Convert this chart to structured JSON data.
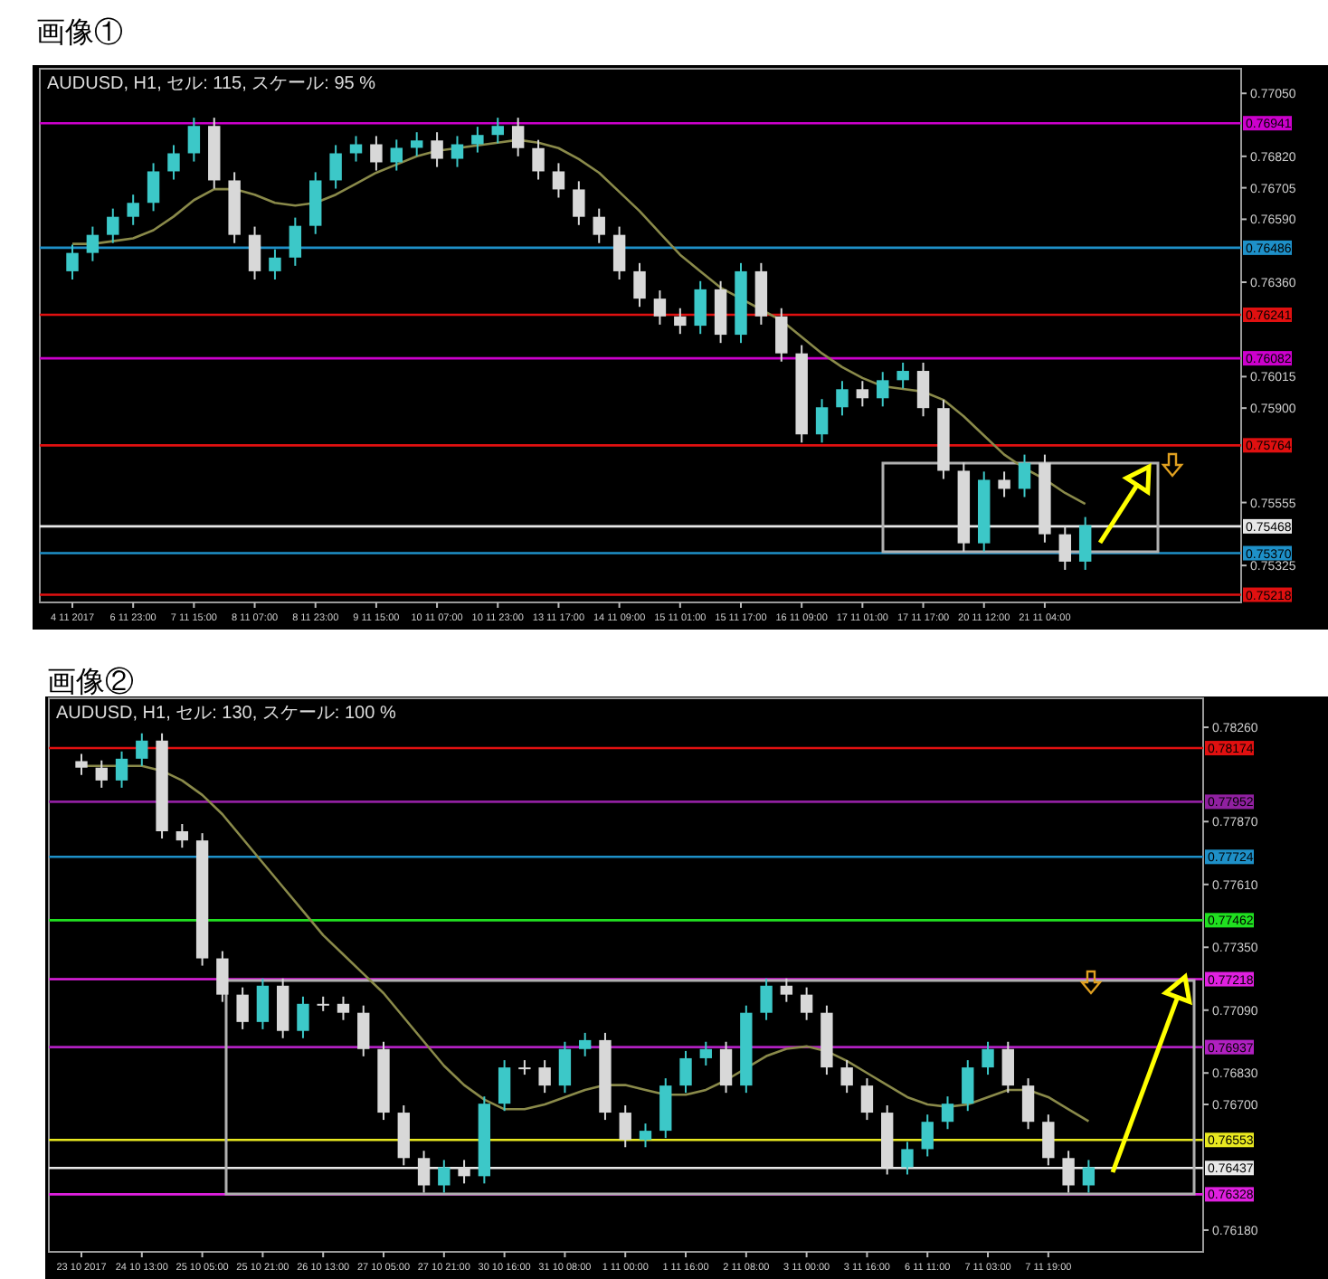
{
  "chart_data": [
    {
      "type": "candlestick",
      "title": "画像①",
      "subtitle": "AUDUSD, H1, セル: 115, スケール: 95 %",
      "categories": [
        "4 11 2017",
        null,
        null,
        "6 11 23:00",
        null,
        null,
        "7 11 15:00",
        null,
        null,
        "8 11 07:00",
        null,
        null,
        "8 11 23:00",
        null,
        null,
        "9 11 15:00",
        null,
        null,
        "10 11 07:00",
        null,
        null,
        "10 11 23:00",
        null,
        null,
        "13 11 17:00",
        null,
        null,
        "14 11 09:00",
        null,
        null,
        "15 11 01:00",
        null,
        null,
        "15 11 17:00",
        null,
        null,
        "16 11 09:00",
        null,
        null,
        "17 11 01:00",
        null,
        null,
        "17 11 17:00",
        null,
        null,
        "20 11 12:00",
        null,
        null,
        "21 11 04:00",
        null,
        null
      ],
      "ohlc": [
        [
          0.764,
          0.76497,
          0.7637,
          0.76467
        ],
        [
          0.76467,
          0.76563,
          0.76437,
          0.76533
        ],
        [
          0.76533,
          0.76629,
          0.76503,
          0.76599
        ],
        [
          0.76599,
          0.7668,
          0.76569,
          0.7665
        ],
        [
          0.7665,
          0.76795,
          0.7662,
          0.76765
        ],
        [
          0.76765,
          0.76861,
          0.76735,
          0.76831
        ],
        [
          0.76831,
          0.76961,
          0.76801,
          0.76931
        ],
        [
          0.76931,
          0.76961,
          0.76702,
          0.76732
        ],
        [
          0.76732,
          0.76762,
          0.76503,
          0.76533
        ],
        [
          0.76533,
          0.76563,
          0.7637,
          0.764
        ],
        [
          0.764,
          0.7648,
          0.7637,
          0.7645
        ],
        [
          0.7645,
          0.76596,
          0.7642,
          0.76566
        ],
        [
          0.76566,
          0.76762,
          0.76536,
          0.76732
        ],
        [
          0.76732,
          0.76861,
          0.76702,
          0.76831
        ],
        [
          0.76831,
          0.76894,
          0.76801,
          0.76864
        ],
        [
          0.76864,
          0.76894,
          0.76768,
          0.76798
        ],
        [
          0.76798,
          0.76881,
          0.76768,
          0.76851
        ],
        [
          0.76851,
          0.76908,
          0.76821,
          0.76878
        ],
        [
          0.76878,
          0.76908,
          0.76781,
          0.76811
        ],
        [
          0.76811,
          0.76894,
          0.76781,
          0.76864
        ],
        [
          0.76864,
          0.76928,
          0.76834,
          0.76898
        ],
        [
          0.76898,
          0.76961,
          0.76868,
          0.76931
        ],
        [
          0.76931,
          0.76961,
          0.7682,
          0.7685
        ],
        [
          0.7685,
          0.7688,
          0.76735,
          0.76765
        ],
        [
          0.76765,
          0.76795,
          0.76669,
          0.76699
        ],
        [
          0.76699,
          0.76729,
          0.76569,
          0.76599
        ],
        [
          0.76599,
          0.76629,
          0.76503,
          0.76533
        ],
        [
          0.76533,
          0.76563,
          0.7637,
          0.764
        ],
        [
          0.764,
          0.7643,
          0.7627,
          0.763
        ],
        [
          0.763,
          0.7633,
          0.76205,
          0.76235
        ],
        [
          0.76235,
          0.76265,
          0.76171,
          0.76201
        ],
        [
          0.76201,
          0.76364,
          0.76171,
          0.76334
        ],
        [
          0.76334,
          0.76364,
          0.76138,
          0.76168
        ],
        [
          0.76168,
          0.7643,
          0.76138,
          0.764
        ],
        [
          0.764,
          0.7643,
          0.76205,
          0.76235
        ],
        [
          0.76235,
          0.76265,
          0.7607,
          0.761
        ],
        [
          0.761,
          0.7613,
          0.75774,
          0.75804
        ],
        [
          0.75804,
          0.75933,
          0.75774,
          0.75903
        ],
        [
          0.75903,
          0.75999,
          0.75873,
          0.75969
        ],
        [
          0.75969,
          0.75999,
          0.75906,
          0.75936
        ],
        [
          0.75936,
          0.76032,
          0.75906,
          0.76002
        ],
        [
          0.76002,
          0.76066,
          0.75972,
          0.76036
        ],
        [
          0.76036,
          0.76066,
          0.7587,
          0.759
        ],
        [
          0.759,
          0.7593,
          0.75641,
          0.75671
        ],
        [
          0.75671,
          0.75701,
          0.75376,
          0.75406
        ],
        [
          0.75406,
          0.75668,
          0.75376,
          0.75638
        ],
        [
          0.75638,
          0.75668,
          0.75575,
          0.75605
        ],
        [
          0.75605,
          0.7573,
          0.75575,
          0.757
        ],
        [
          0.757,
          0.7573,
          0.75409,
          0.75439
        ],
        [
          0.75439,
          0.75469,
          0.75309,
          0.75339
        ],
        [
          0.75339,
          0.75502,
          0.75309,
          0.75472
        ]
      ],
      "colors": [
        "#3cc8c8",
        "#3cc8c8",
        "#3cc8c8",
        "#3cc8c8",
        "#3cc8c8",
        "#3cc8c8",
        "#3cc8c8",
        "#d8d8d8",
        "#d8d8d8",
        "#d8d8d8",
        "#3cc8c8",
        "#3cc8c8",
        "#3cc8c8",
        "#3cc8c8",
        "#3cc8c8",
        "#d8d8d8",
        "#3cc8c8",
        "#3cc8c8",
        "#d8d8d8",
        "#3cc8c8",
        "#3cc8c8",
        "#3cc8c8",
        "#d8d8d8",
        "#d8d8d8",
        "#d8d8d8",
        "#d8d8d8",
        "#d8d8d8",
        "#d8d8d8",
        "#d8d8d8",
        "#d8d8d8",
        "#d8d8d8",
        "#3cc8c8",
        "#d8d8d8",
        "#3cc8c8",
        "#d8d8d8",
        "#d8d8d8",
        "#d8d8d8",
        "#3cc8c8",
        "#3cc8c8",
        "#d8d8d8",
        "#3cc8c8",
        "#3cc8c8",
        "#d8d8d8",
        "#d8d8d8",
        "#d8d8d8",
        "#3cc8c8",
        "#d8d8d8",
        "#3cc8c8",
        "#d8d8d8",
        "#d8d8d8",
        "#3cc8c8"
      ],
      "series": [
        {
          "type": "line",
          "color": "#8a8a4a",
          "values": [
            0.765,
            0.765,
            0.7651,
            0.7652,
            0.7655,
            0.766,
            0.7666,
            0.767,
            0.767,
            0.7668,
            0.7665,
            0.7664,
            0.7665,
            0.7668,
            0.7672,
            0.7676,
            0.7679,
            0.7682,
            0.7684,
            0.7685,
            0.7686,
            0.7687,
            0.7688,
            0.7687,
            0.7685,
            0.7681,
            0.7676,
            0.7669,
            0.7662,
            0.7654,
            0.7646,
            0.764,
            0.7634,
            0.763,
            0.7626,
            0.7622,
            0.7616,
            0.761,
            0.7605,
            0.7601,
            0.7598,
            0.7597,
            0.7596,
            0.7593,
            0.7587,
            0.758,
            0.7573,
            0.7568,
            0.7564,
            0.7559,
            0.7555
          ]
        }
      ],
      "ylim": [
        0.7519,
        0.7714
      ],
      "yticks": [
        {
          "value": 0.7705,
          "label": "0.77050"
        },
        {
          "value": 0.7682,
          "label": "0.76820"
        },
        {
          "value": 0.76705,
          "label": "0.76705"
        },
        {
          "value": 0.7659,
          "label": "0.76590"
        },
        {
          "value": 0.7636,
          "label": "0.76360"
        },
        {
          "value": 0.76015,
          "label": "0.76015"
        },
        {
          "value": 0.759,
          "label": "0.75900"
        },
        {
          "value": 0.75555,
          "label": "0.75555"
        },
        {
          "value": 0.75325,
          "label": "0.75325"
        }
      ],
      "ref_lines": [
        {
          "axis": "y",
          "value": 0.76941,
          "label": "0.76941",
          "color": "#cc00cc"
        },
        {
          "axis": "y",
          "value": 0.76486,
          "label": "0.76486",
          "color": "#1e90c8"
        },
        {
          "axis": "y",
          "value": 0.76241,
          "label": "0.76241",
          "color": "#e01010"
        },
        {
          "axis": "y",
          "value": 0.76082,
          "label": "0.76082",
          "color": "#cc00cc"
        },
        {
          "axis": "y",
          "value": 0.75764,
          "label": "0.75764",
          "color": "#e01010"
        },
        {
          "axis": "y",
          "value": 0.75468,
          "label": "0.75468",
          "color": "#e8e8e8"
        },
        {
          "axis": "y",
          "value": 0.7537,
          "label": "0.75370",
          "color": "#1e90c8"
        },
        {
          "axis": "y",
          "value": 0.75218,
          "label": "0.75218",
          "color": "#e01010"
        }
      ]
    },
    {
      "type": "candlestick",
      "title": "画像②",
      "subtitle": "AUDUSD, H1, セル: 130, スケール: 100 %",
      "categories": [
        "23 10 2017",
        null,
        null,
        "24 10 13:00",
        null,
        null,
        "25 10 05:00",
        null,
        null,
        "25 10 21:00",
        null,
        null,
        "26 10 13:00",
        null,
        null,
        "27 10 05:00",
        null,
        null,
        "27 10 21:00",
        null,
        null,
        "30 10 16:00",
        null,
        null,
        "31 10 08:00",
        null,
        null,
        "1 11 00:00",
        null,
        null,
        "1 11 16:00",
        null,
        null,
        "2 11 08:00",
        null,
        null,
        "3 11 00:00",
        null,
        null,
        "3 11 16:00",
        null,
        null,
        "6 11 11:00",
        null,
        null,
        "7 11 03:00",
        null,
        null,
        "7 11 19:00",
        null,
        null
      ],
      "ohlc": [
        [
          0.7812,
          0.7815,
          0.78063,
          0.78093
        ],
        [
          0.78093,
          0.78123,
          0.7801,
          0.7804
        ],
        [
          0.7804,
          0.7816,
          0.7801,
          0.7813
        ],
        [
          0.7813,
          0.78235,
          0.781,
          0.78205
        ],
        [
          0.78205,
          0.78235,
          0.778,
          0.7783
        ],
        [
          0.7783,
          0.7786,
          0.77762,
          0.77792
        ],
        [
          0.77792,
          0.77822,
          0.77274,
          0.77304
        ],
        [
          0.77304,
          0.77334,
          0.77124,
          0.77154
        ],
        [
          0.77154,
          0.77184,
          0.77011,
          0.77041
        ],
        [
          0.77041,
          0.77221,
          0.77011,
          0.77191
        ],
        [
          0.77191,
          0.77221,
          0.76974,
          0.77004
        ],
        [
          0.77004,
          0.77146,
          0.76974,
          0.77116
        ],
        [
          0.77116,
          0.77146,
          0.77086,
          0.77116
        ],
        [
          0.77116,
          0.77146,
          0.77049,
          0.77079
        ],
        [
          0.77079,
          0.77109,
          0.76899,
          0.76929
        ],
        [
          0.76929,
          0.76959,
          0.76636,
          0.76666
        ],
        [
          0.76666,
          0.76696,
          0.76448,
          0.76478
        ],
        [
          0.76478,
          0.76508,
          0.76335,
          0.76365
        ],
        [
          0.76365,
          0.7647,
          0.76335,
          0.7644
        ],
        [
          0.7644,
          0.7647,
          0.76373,
          0.76403
        ],
        [
          0.76403,
          0.76733,
          0.76373,
          0.76703
        ],
        [
          0.76703,
          0.76883,
          0.76673,
          0.76853
        ],
        [
          0.76853,
          0.76883,
          0.76823,
          0.76853
        ],
        [
          0.76853,
          0.76883,
          0.76748,
          0.76778
        ],
        [
          0.76778,
          0.76959,
          0.76748,
          0.76929
        ],
        [
          0.76929,
          0.76996,
          0.76899,
          0.76966
        ],
        [
          0.76966,
          0.76996,
          0.76636,
          0.76666
        ],
        [
          0.76666,
          0.76696,
          0.76523,
          0.76553
        ],
        [
          0.76553,
          0.76621,
          0.76523,
          0.76591
        ],
        [
          0.76591,
          0.76808,
          0.76561,
          0.76778
        ],
        [
          0.76778,
          0.76921,
          0.76748,
          0.76891
        ],
        [
          0.76891,
          0.76959,
          0.76861,
          0.76929
        ],
        [
          0.76929,
          0.76959,
          0.76748,
          0.76778
        ],
        [
          0.76778,
          0.77109,
          0.76748,
          0.77079
        ],
        [
          0.77079,
          0.77221,
          0.77049,
          0.77191
        ],
        [
          0.77191,
          0.77221,
          0.77124,
          0.77154
        ],
        [
          0.77154,
          0.77184,
          0.77049,
          0.77079
        ],
        [
          0.77079,
          0.77109,
          0.76823,
          0.76853
        ],
        [
          0.76853,
          0.76883,
          0.76748,
          0.76778
        ],
        [
          0.76778,
          0.76808,
          0.76636,
          0.76666
        ],
        [
          0.76666,
          0.76696,
          0.7641,
          0.7644
        ],
        [
          0.7644,
          0.76545,
          0.7641,
          0.76515
        ],
        [
          0.76515,
          0.76658,
          0.76485,
          0.76628
        ],
        [
          0.76628,
          0.76733,
          0.76598,
          0.76703
        ],
        [
          0.76703,
          0.76883,
          0.76673,
          0.76853
        ],
        [
          0.76853,
          0.76959,
          0.76823,
          0.76929
        ],
        [
          0.76929,
          0.76959,
          0.76748,
          0.76778
        ],
        [
          0.76778,
          0.76808,
          0.76598,
          0.76628
        ],
        [
          0.76628,
          0.76658,
          0.76448,
          0.76478
        ],
        [
          0.76478,
          0.76508,
          0.76335,
          0.76365
        ],
        [
          0.76365,
          0.7647,
          0.76335,
          0.7644
        ]
      ],
      "colors": [
        "#d8d8d8",
        "#d8d8d8",
        "#3cc8c8",
        "#3cc8c8",
        "#d8d8d8",
        "#d8d8d8",
        "#d8d8d8",
        "#d8d8d8",
        "#d8d8d8",
        "#3cc8c8",
        "#d8d8d8",
        "#3cc8c8",
        "#d8d8d8",
        "#d8d8d8",
        "#d8d8d8",
        "#d8d8d8",
        "#d8d8d8",
        "#d8d8d8",
        "#3cc8c8",
        "#d8d8d8",
        "#3cc8c8",
        "#3cc8c8",
        "#d8d8d8",
        "#d8d8d8",
        "#3cc8c8",
        "#3cc8c8",
        "#d8d8d8",
        "#d8d8d8",
        "#3cc8c8",
        "#3cc8c8",
        "#3cc8c8",
        "#3cc8c8",
        "#d8d8d8",
        "#3cc8c8",
        "#3cc8c8",
        "#d8d8d8",
        "#d8d8d8",
        "#d8d8d8",
        "#d8d8d8",
        "#d8d8d8",
        "#d8d8d8",
        "#3cc8c8",
        "#3cc8c8",
        "#3cc8c8",
        "#3cc8c8",
        "#3cc8c8",
        "#d8d8d8",
        "#d8d8d8",
        "#d8d8d8",
        "#d8d8d8",
        "#3cc8c8"
      ],
      "series": [
        {
          "type": "line",
          "color": "#8a8a4a",
          "values": [
            0.781,
            0.781,
            0.781,
            0.781,
            0.7808,
            0.7804,
            0.7798,
            0.779,
            0.778,
            0.777,
            0.776,
            0.775,
            0.774,
            0.7732,
            0.7724,
            0.7716,
            0.7706,
            0.7696,
            0.7686,
            0.7678,
            0.7672,
            0.7668,
            0.7668,
            0.767,
            0.7673,
            0.7676,
            0.7678,
            0.7678,
            0.7676,
            0.7674,
            0.7674,
            0.7676,
            0.768,
            0.7685,
            0.769,
            0.7693,
            0.7694,
            0.7692,
            0.7688,
            0.7683,
            0.7678,
            0.7673,
            0.767,
            0.7669,
            0.767,
            0.7673,
            0.7676,
            0.7676,
            0.7673,
            0.7668,
            0.7663
          ]
        }
      ],
      "ylim": [
        0.7609,
        0.7838
      ],
      "yticks": [
        {
          "value": 0.7826,
          "label": "0.78260"
        },
        {
          "value": 0.7787,
          "label": "0.77870"
        },
        {
          "value": 0.7761,
          "label": "0.77610"
        },
        {
          "value": 0.7735,
          "label": "0.77350"
        },
        {
          "value": 0.7709,
          "label": "0.77090"
        },
        {
          "value": 0.7683,
          "label": "0.76830"
        },
        {
          "value": 0.767,
          "label": "0.76700"
        },
        {
          "value": 0.7618,
          "label": "0.76180"
        }
      ],
      "ref_lines": [
        {
          "axis": "y",
          "value": 0.78174,
          "label": "0.78174",
          "color": "#e01010"
        },
        {
          "axis": "y",
          "value": 0.77952,
          "label": "0.77952",
          "color": "#9020a0"
        },
        {
          "axis": "y",
          "value": 0.77724,
          "label": "0.77724",
          "color": "#1e90c8"
        },
        {
          "axis": "y",
          "value": 0.77462,
          "label": "0.77462",
          "color": "#20e020"
        },
        {
          "axis": "y",
          "value": 0.77218,
          "label": "0.77218",
          "color": "#e020e0"
        },
        {
          "axis": "y",
          "value": 0.76937,
          "label": "0.76937",
          "color": "#b020c0"
        },
        {
          "axis": "y",
          "value": 0.76553,
          "label": "0.76553",
          "color": "#e8e820"
        },
        {
          "axis": "y",
          "value": 0.76437,
          "label": "0.76437",
          "color": "#e8e8e8"
        },
        {
          "axis": "y",
          "value": 0.76328,
          "label": "0.76328",
          "color": "#e020e0"
        }
      ]
    }
  ]
}
